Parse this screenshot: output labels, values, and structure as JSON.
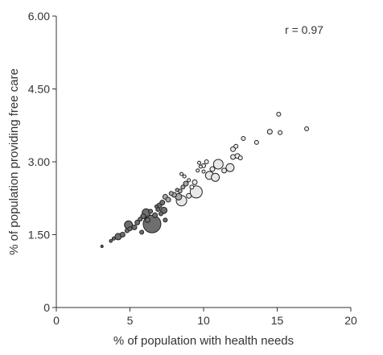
{
  "colors": {
    "dark": "#6e6e6e",
    "mid": "#a8a8a8",
    "light": "#e8e8e8",
    "stroke": "#222222",
    "axis": "#333333"
  },
  "chart_data": {
    "type": "scatter",
    "title": "",
    "xlabel": "% of population with health needs",
    "ylabel": "% of population providing free care",
    "annotation": "r = 0.97",
    "xlim": [
      0,
      20
    ],
    "ylim": [
      0,
      6.0
    ],
    "xticks": [
      0,
      5,
      10,
      15,
      20
    ],
    "xtick_labels": [
      "0",
      "5",
      "10",
      "15",
      "20"
    ],
    "yticks": [
      0,
      1.5,
      3.0,
      4.5,
      6.0
    ],
    "ytick_labels": [
      "0",
      "1.50",
      "3.00",
      "4.50",
      "6.00"
    ],
    "grid": false,
    "legend": "none",
    "points": [
      {
        "x": 3.1,
        "y": 1.26,
        "size": 1.5,
        "shade": "dark"
      },
      {
        "x": 3.7,
        "y": 1.37,
        "size": 1.8,
        "shade": "dark"
      },
      {
        "x": 3.9,
        "y": 1.42,
        "size": 2,
        "shade": "dark"
      },
      {
        "x": 4.2,
        "y": 1.46,
        "size": 4,
        "shade": "dark"
      },
      {
        "x": 4.5,
        "y": 1.5,
        "size": 3,
        "shade": "dark"
      },
      {
        "x": 4.8,
        "y": 1.58,
        "size": 2.5,
        "shade": "dark"
      },
      {
        "x": 5.0,
        "y": 1.62,
        "size": 2.5,
        "shade": "dark"
      },
      {
        "x": 4.9,
        "y": 1.7,
        "size": 5,
        "shade": "dark"
      },
      {
        "x": 5.3,
        "y": 1.65,
        "size": 3,
        "shade": "dark"
      },
      {
        "x": 5.5,
        "y": 1.75,
        "size": 3,
        "shade": "dark"
      },
      {
        "x": 5.7,
        "y": 1.82,
        "size": 2.5,
        "shade": "dark"
      },
      {
        "x": 5.9,
        "y": 1.88,
        "size": 3,
        "shade": "dark"
      },
      {
        "x": 6.1,
        "y": 1.95,
        "size": 5,
        "shade": "dark"
      },
      {
        "x": 6.5,
        "y": 1.72,
        "size": 11,
        "shade": "dark"
      },
      {
        "x": 5.8,
        "y": 1.55,
        "size": 2.5,
        "shade": "dark"
      },
      {
        "x": 6.2,
        "y": 1.8,
        "size": 3,
        "shade": "dark"
      },
      {
        "x": 6.4,
        "y": 1.98,
        "size": 2.5,
        "shade": "dark"
      },
      {
        "x": 6.7,
        "y": 1.9,
        "size": 3,
        "shade": "dark"
      },
      {
        "x": 6.9,
        "y": 2.02,
        "size": 2.5,
        "shade": "dark"
      },
      {
        "x": 7.0,
        "y": 2.1,
        "size": 3,
        "shade": "dark"
      },
      {
        "x": 7.2,
        "y": 2.16,
        "size": 3,
        "shade": "dark"
      },
      {
        "x": 7.3,
        "y": 2.0,
        "size": 4,
        "shade": "dark"
      },
      {
        "x": 7.4,
        "y": 1.8,
        "size": 2.5,
        "shade": "dark"
      },
      {
        "x": 7.1,
        "y": 1.93,
        "size": 2.5,
        "shade": "dark"
      },
      {
        "x": 6.8,
        "y": 2.08,
        "size": 2,
        "shade": "dark"
      },
      {
        "x": 7.4,
        "y": 2.28,
        "size": 3,
        "shade": "mid"
      },
      {
        "x": 7.6,
        "y": 2.22,
        "size": 3,
        "shade": "mid"
      },
      {
        "x": 7.8,
        "y": 2.35,
        "size": 2.5,
        "shade": "mid"
      },
      {
        "x": 8.0,
        "y": 2.32,
        "size": 3,
        "shade": "mid"
      },
      {
        "x": 8.2,
        "y": 2.42,
        "size": 2,
        "shade": "mid"
      },
      {
        "x": 8.4,
        "y": 2.4,
        "size": 2.5,
        "shade": "mid"
      },
      {
        "x": 8.3,
        "y": 2.28,
        "size": 4,
        "shade": "mid"
      },
      {
        "x": 8.6,
        "y": 2.48,
        "size": 2.5,
        "shade": "mid"
      },
      {
        "x": 8.8,
        "y": 2.55,
        "size": 3,
        "shade": "mid"
      },
      {
        "x": 8.5,
        "y": 2.2,
        "size": 6.5,
        "shade": "light"
      },
      {
        "x": 9.0,
        "y": 2.3,
        "size": 3,
        "shade": "light"
      },
      {
        "x": 9.2,
        "y": 2.48,
        "size": 2.5,
        "shade": "light"
      },
      {
        "x": 9.5,
        "y": 2.38,
        "size": 7.5,
        "shade": "light"
      },
      {
        "x": 9.4,
        "y": 2.58,
        "size": 3,
        "shade": "light"
      },
      {
        "x": 9.0,
        "y": 2.62,
        "size": 2,
        "shade": "light"
      },
      {
        "x": 8.7,
        "y": 2.7,
        "size": 2,
        "shade": "light"
      },
      {
        "x": 8.5,
        "y": 2.75,
        "size": 2,
        "shade": "light"
      },
      {
        "x": 9.6,
        "y": 2.82,
        "size": 2,
        "shade": "light"
      },
      {
        "x": 9.8,
        "y": 2.9,
        "size": 2,
        "shade": "light"
      },
      {
        "x": 9.7,
        "y": 2.98,
        "size": 2,
        "shade": "light"
      },
      {
        "x": 10.0,
        "y": 2.92,
        "size": 2.5,
        "shade": "light"
      },
      {
        "x": 10.2,
        "y": 3.0,
        "size": 2.5,
        "shade": "light"
      },
      {
        "x": 10.0,
        "y": 2.8,
        "size": 2,
        "shade": "light"
      },
      {
        "x": 10.4,
        "y": 2.72,
        "size": 5,
        "shade": "light"
      },
      {
        "x": 10.8,
        "y": 2.68,
        "size": 5,
        "shade": "light"
      },
      {
        "x": 10.6,
        "y": 2.85,
        "size": 3,
        "shade": "light"
      },
      {
        "x": 11.0,
        "y": 2.95,
        "size": 6,
        "shade": "light"
      },
      {
        "x": 11.4,
        "y": 2.82,
        "size": 3,
        "shade": "light"
      },
      {
        "x": 11.8,
        "y": 2.88,
        "size": 5,
        "shade": "light"
      },
      {
        "x": 12.0,
        "y": 3.1,
        "size": 3,
        "shade": "light"
      },
      {
        "x": 12.3,
        "y": 3.12,
        "size": 3,
        "shade": "light"
      },
      {
        "x": 12.5,
        "y": 3.08,
        "size": 2.5,
        "shade": "light"
      },
      {
        "x": 12.0,
        "y": 3.26,
        "size": 3,
        "shade": "light"
      },
      {
        "x": 12.2,
        "y": 3.32,
        "size": 2.5,
        "shade": "light"
      },
      {
        "x": 12.7,
        "y": 3.48,
        "size": 2.5,
        "shade": "light"
      },
      {
        "x": 13.6,
        "y": 3.4,
        "size": 2.5,
        "shade": "light"
      },
      {
        "x": 14.5,
        "y": 3.62,
        "size": 3,
        "shade": "light"
      },
      {
        "x": 15.2,
        "y": 3.6,
        "size": 2.5,
        "shade": "light"
      },
      {
        "x": 15.1,
        "y": 3.98,
        "size": 2.5,
        "shade": "light"
      },
      {
        "x": 17.0,
        "y": 3.68,
        "size": 2.5,
        "shade": "light"
      }
    ]
  }
}
